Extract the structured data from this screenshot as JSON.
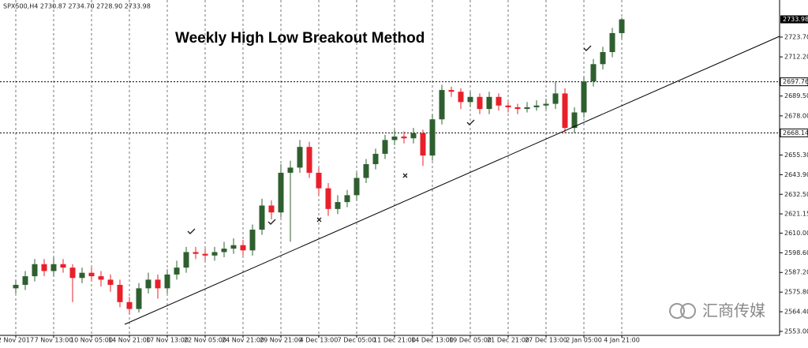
{
  "header": "SPX500,H4  2730.87 2734.70 2728.90 2733.98",
  "watermark": "汇商传媒",
  "chart_data": {
    "type": "candlestick",
    "title": "Weekly High Low Breakout Method",
    "categories": [
      "2 Nov 2017",
      null,
      null,
      null,
      "7 Nov 13:00",
      null,
      null,
      null,
      "10 Nov 05:00",
      null,
      null,
      null,
      "14 Nov 21:00",
      null,
      null,
      null,
      "17 Nov 13:00",
      null,
      null,
      null,
      "22 Nov 05:00",
      null,
      null,
      null,
      "24 Nov 21:00",
      null,
      null,
      null,
      "29 Nov 21:00",
      null,
      null,
      null,
      "4 Dec 13:00",
      null,
      null,
      null,
      "7 Dec 05:00",
      null,
      null,
      null,
      "11 Dec 21:00",
      null,
      null,
      null,
      "14 Dec 13:00",
      null,
      null,
      null,
      "19 Dec 05:00",
      null,
      null,
      null,
      "21 Dec 21:00",
      null,
      null,
      null,
      "27 Dec 13:00",
      null,
      null,
      null,
      "2 Jan 05:00",
      null,
      null,
      null,
      "4 Jan 21:00"
    ],
    "open": [
      2578,
      2580,
      2585,
      2592,
      2588,
      2592,
      2590,
      2584,
      2587,
      2585,
      2583,
      2580,
      2570,
      2566,
      2578,
      2583,
      2578,
      2586,
      2590,
      2599,
      2598,
      2597,
      2599,
      2601,
      2603,
      2600,
      2612,
      2626,
      2622,
      2645,
      2648,
      2660,
      2645,
      2636,
      2624,
      2628,
      2632,
      2642,
      2650,
      2656,
      2664,
      2666,
      2665,
      2668,
      2655,
      2676,
      2693,
      2692,
      2686,
      2689,
      2682,
      2689,
      2684,
      2683,
      2682,
      2683,
      2684,
      2685,
      2691,
      2671,
      2680,
      2698,
      2708,
      2715,
      2726
    ],
    "high": [
      2583,
      2588,
      2595,
      2595,
      2596,
      2595,
      2592,
      2590,
      2590,
      2588,
      2586,
      2583,
      2573,
      2581,
      2587,
      2586,
      2589,
      2594,
      2602,
      2602,
      2601,
      2602,
      2605,
      2607,
      2606,
      2615,
      2630,
      2629,
      2650,
      2652,
      2664,
      2663,
      2648,
      2639,
      2632,
      2635,
      2645,
      2653,
      2659,
      2667,
      2670,
      2669,
      2671,
      2670,
      2679,
      2696,
      2695,
      2694,
      2692,
      2691,
      2692,
      2691,
      2686,
      2685,
      2686,
      2687,
      2688,
      2698,
      2694,
      2683,
      2701,
      2711,
      2718,
      2729,
      2735
    ],
    "low": [
      2575,
      2577,
      2582,
      2585,
      2585,
      2587,
      2570,
      2581,
      2582,
      2579,
      2576,
      2567,
      2563,
      2564,
      2575,
      2572,
      2575,
      2583,
      2587,
      2595,
      2594,
      2594,
      2596,
      2598,
      2597,
      2597,
      2609,
      2618,
      2619,
      2605,
      2645,
      2642,
      2632,
      2620,
      2621,
      2625,
      2629,
      2639,
      2647,
      2653,
      2661,
      2662,
      2662,
      2649,
      2652,
      2673,
      2689,
      2682,
      2683,
      2679,
      2679,
      2681,
      2680,
      2679,
      2680,
      2681,
      2682,
      2682,
      2668,
      2668,
      2677,
      2695,
      2705,
      2712,
      2723
    ],
    "close": [
      2580,
      2585,
      2592,
      2588,
      2592,
      2590,
      2584,
      2587,
      2585,
      2583,
      2580,
      2570,
      2566,
      2578,
      2583,
      2578,
      2586,
      2590,
      2599,
      2598,
      2597,
      2599,
      2601,
      2603,
      2600,
      2612,
      2626,
      2622,
      2645,
      2648,
      2660,
      2645,
      2636,
      2624,
      2628,
      2632,
      2642,
      2650,
      2656,
      2664,
      2666,
      2665,
      2668,
      2655,
      2676,
      2693,
      2692,
      2686,
      2689,
      2682,
      2689,
      2684,
      2683,
      2682,
      2683,
      2684,
      2685,
      2691,
      2671,
      2680,
      2698,
      2708,
      2715,
      2726,
      2733.98
    ],
    "up_color": "#2f5f2f",
    "down_color": "#e8202a",
    "ylim": [
      2550.7,
      2745.2
    ],
    "yticks": [
      {
        "value": 2553,
        "label": "2553.00"
      },
      {
        "value": 2564.4,
        "label": "2564.40"
      },
      {
        "value": 2575.8,
        "label": "2575.80"
      },
      {
        "value": 2587.2,
        "label": "2587.20"
      },
      {
        "value": 2598.6,
        "label": "2598.60"
      },
      {
        "value": 2610,
        "label": "2610.00"
      },
      2621.15,
      {
        "value": 2632.5,
        "label": "2632.50"
      },
      {
        "value": 2643.9,
        "label": "2643.90"
      },
      {
        "value": 2655.3,
        "label": "2655.30"
      },
      {
        "value": 2678,
        "label": "2678.00"
      },
      {
        "value": 2689.5,
        "label": "2689.50"
      },
      {
        "value": 2712.2,
        "label": "2712.20"
      },
      {
        "value": 2723.7,
        "label": "2723.70"
      }
    ],
    "price_lines": [
      2697.76,
      2668.14
    ],
    "current_price": 2733.98,
    "grid": true
  }
}
